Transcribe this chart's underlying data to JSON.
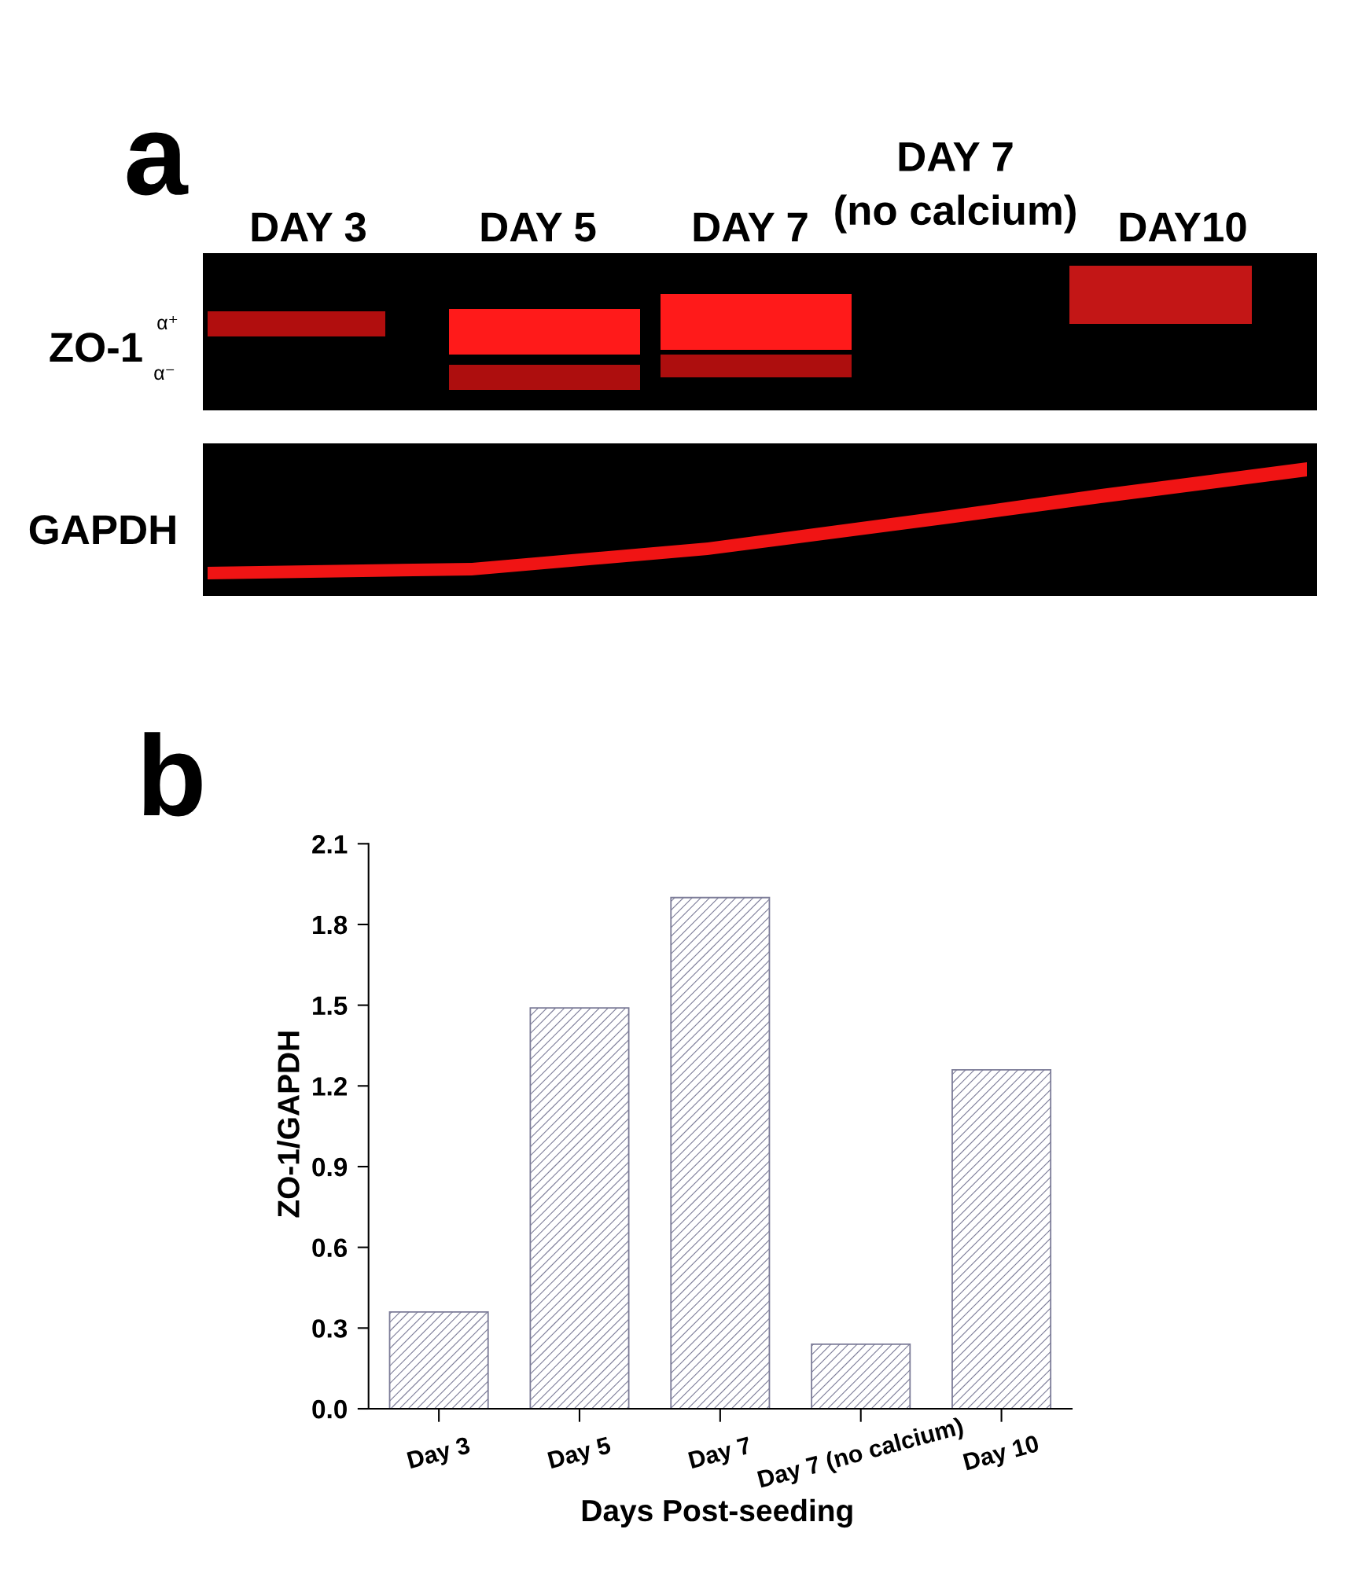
{
  "chart_data": {
    "type": "bar",
    "categories": [
      "Day 3",
      "Day 5",
      "Day 7",
      "Day 7 (no calcium)",
      "Day 10"
    ],
    "values": [
      0.36,
      1.49,
      1.9,
      0.24,
      1.26
    ],
    "color": "#7c7c98",
    "xlabel": "Days Post-seeding",
    "ylabel": "ZO-1/GAPDH",
    "ylim": [
      0,
      2.1
    ],
    "yticks": [
      {
        "value": 0,
        "label": "0.0"
      },
      0.3,
      0.6,
      0.9,
      1.2,
      1.5,
      1.8,
      2.1
    ],
    "annotations": [
      "a",
      "DAY 3",
      "DAY 5",
      "DAY 7",
      "DAY 7\n(no calcium)",
      "DAY10",
      "ZO-1",
      "α⁺",
      "α⁻",
      "GAPDH",
      "b"
    ]
  }
}
